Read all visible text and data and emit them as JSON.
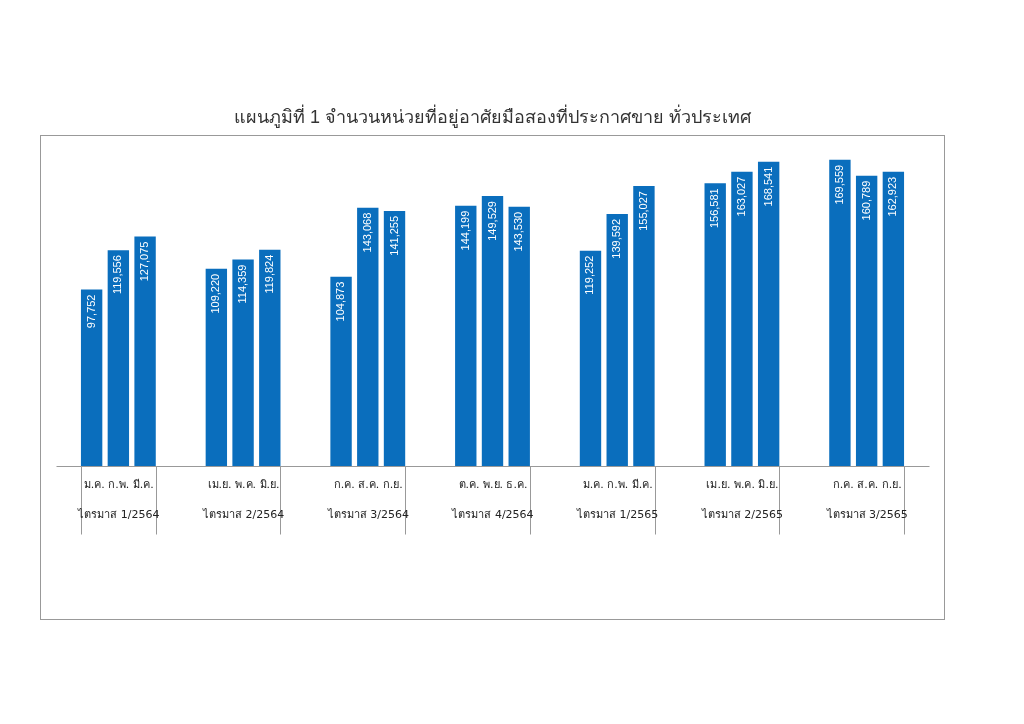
{
  "chart_data": {
    "type": "bar",
    "title": "แผนภูมิที่ 1 จำนวนหน่วยที่อยู่อาศัยมือสองที่ประกาศขาย ทั่วประเทศ",
    "categories": [
      "ม.ค. ก.พ. มี.ค.\nไตรมาส 1/2564",
      "เม.ย. พ.ค. มิ.ย.\nไตรมาส 2/2564",
      "ก.ค. ส.ค. ก.ย.\nไตรมาส 3/2564",
      "ต.ค. พ.ย. ธ.ค.\nไตรมาส 4/2564",
      "ม.ค. ก.พ. มี.ค.\nไตรมาส 1/2565",
      "เม.ย. พ.ค. มิ.ย.\nไตรมาส 2/2565",
      "ก.ค. ส.ค. ก.ย.\nไตรมาส 3/2565"
    ],
    "series": [
      {
        "color": "#0a6ebd",
        "values": [
          97752,
          109220,
          104873,
          144199,
          119252,
          156581,
          169559
        ],
        "value_labels": [
          "97,752",
          "109,220",
          "104,873",
          "144,199",
          "119,252",
          "156,581",
          "169,559"
        ]
      },
      {
        "color": "#0a6ebd",
        "values": [
          119556,
          114359,
          143068,
          149529,
          139592,
          163027,
          160789
        ],
        "value_labels": [
          "119,556",
          "114,359",
          "143,068",
          "149,529",
          "139,592",
          "163,027",
          "160,789"
        ]
      },
      {
        "color": "#0a6ebd",
        "values": [
          127075,
          119824,
          141255,
          143530,
          155027,
          168541,
          162923
        ],
        "value_labels": [
          "127,075",
          "119,824",
          "141,255",
          "143,530",
          "155,027",
          "168,541",
          "162,923"
        ]
      }
    ],
    "grid": false,
    "legend": false
  }
}
